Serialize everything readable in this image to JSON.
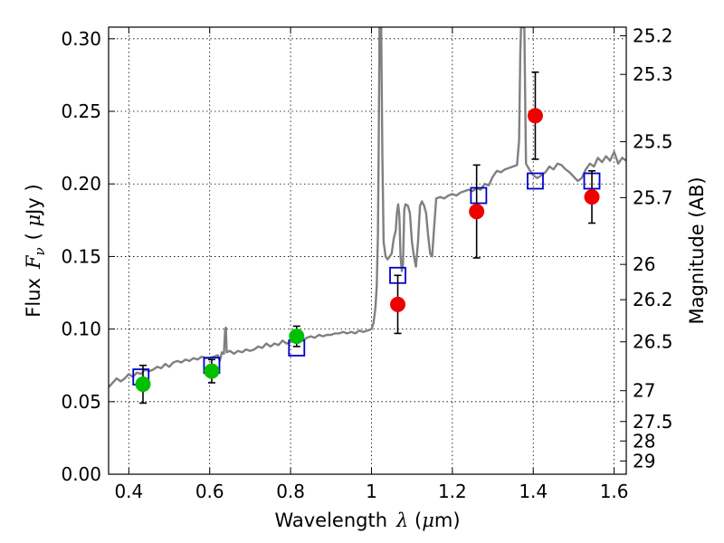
{
  "chart_data": {
    "type": "scatter",
    "xlabel_parts": {
      "prefix": "Wavelength",
      "symbol": "λ",
      "unit_open": " (",
      "unit_mu": "μ",
      "unit_rest": "m)"
    },
    "ylabel_parts": {
      "prefix": "Flux",
      "symbol": "F",
      "sub": "ν",
      "unit_open": "( ",
      "unit_mu": "μ",
      "unit_rest": "Jy )"
    },
    "y2label": "Magnitude (AB)",
    "xlim": [
      0.35,
      1.63
    ],
    "ylim": [
      0.0,
      0.308
    ],
    "grid": true,
    "x_ticks": [
      {
        "value": 0.4,
        "label": "0.4"
      },
      {
        "value": 0.6,
        "label": "0.6"
      },
      {
        "value": 0.8,
        "label": "0.8"
      },
      {
        "value": 1.0,
        "label": "1"
      },
      {
        "value": 1.2,
        "label": "1.2"
      },
      {
        "value": 1.4,
        "label": "1.4"
      },
      {
        "value": 1.6,
        "label": "1.6"
      }
    ],
    "y_ticks": [
      {
        "value": 0.0,
        "label": "0.00"
      },
      {
        "value": 0.05,
        "label": "0.05"
      },
      {
        "value": 0.1,
        "label": "0.10"
      },
      {
        "value": 0.15,
        "label": "0.15"
      },
      {
        "value": 0.2,
        "label": "0.20"
      },
      {
        "value": 0.25,
        "label": "0.25"
      },
      {
        "value": 0.3,
        "label": "0.30"
      }
    ],
    "y2_ticks": [
      {
        "value": 25.2,
        "label": "25.2"
      },
      {
        "value": 25.3,
        "label": "25.3"
      },
      {
        "value": 25.5,
        "label": "25.5"
      },
      {
        "value": 25.7,
        "label": "25.7"
      },
      {
        "value": 26.0,
        "label": "26"
      },
      {
        "value": 26.2,
        "label": "26.2"
      },
      {
        "value": 26.5,
        "label": "26.5"
      },
      {
        "value": 27.0,
        "label": "27"
      },
      {
        "value": 27.5,
        "label": "27.5"
      },
      {
        "value": 28.0,
        "label": "28"
      },
      {
        "value": 29.0,
        "label": "29"
      }
    ],
    "colors": {
      "spectrum": "#808080",
      "green": "#00c000",
      "red": "#ee0000",
      "square": "#0000cc",
      "errorbar": "#000000"
    },
    "spectrum": [
      [
        0.35,
        0.06
      ],
      [
        0.36,
        0.063
      ],
      [
        0.37,
        0.066
      ],
      [
        0.38,
        0.064
      ],
      [
        0.39,
        0.066
      ],
      [
        0.4,
        0.069
      ],
      [
        0.41,
        0.067
      ],
      [
        0.42,
        0.07
      ],
      [
        0.43,
        0.069
      ],
      [
        0.44,
        0.072
      ],
      [
        0.45,
        0.071
      ],
      [
        0.46,
        0.072
      ],
      [
        0.47,
        0.074
      ],
      [
        0.48,
        0.073
      ],
      [
        0.49,
        0.076
      ],
      [
        0.5,
        0.074
      ],
      [
        0.51,
        0.077
      ],
      [
        0.52,
        0.078
      ],
      [
        0.53,
        0.077
      ],
      [
        0.54,
        0.079
      ],
      [
        0.55,
        0.078
      ],
      [
        0.56,
        0.08
      ],
      [
        0.57,
        0.079
      ],
      [
        0.58,
        0.081
      ],
      [
        0.59,
        0.08
      ],
      [
        0.6,
        0.08
      ],
      [
        0.61,
        0.081
      ],
      [
        0.62,
        0.082
      ],
      [
        0.625,
        0.078
      ],
      [
        0.63,
        0.084
      ],
      [
        0.635,
        0.083
      ],
      [
        0.638,
        0.099
      ],
      [
        0.64,
        0.101
      ],
      [
        0.642,
        0.084
      ],
      [
        0.65,
        0.085
      ],
      [
        0.66,
        0.083
      ],
      [
        0.67,
        0.085
      ],
      [
        0.68,
        0.084
      ],
      [
        0.69,
        0.086
      ],
      [
        0.7,
        0.085
      ],
      [
        0.71,
        0.086
      ],
      [
        0.72,
        0.088
      ],
      [
        0.73,
        0.087
      ],
      [
        0.74,
        0.09
      ],
      [
        0.75,
        0.088
      ],
      [
        0.76,
        0.09
      ],
      [
        0.77,
        0.089
      ],
      [
        0.78,
        0.092
      ],
      [
        0.79,
        0.09
      ],
      [
        0.8,
        0.091
      ],
      [
        0.81,
        0.092
      ],
      [
        0.82,
        0.093
      ],
      [
        0.83,
        0.092
      ],
      [
        0.84,
        0.094
      ],
      [
        0.85,
        0.095
      ],
      [
        0.86,
        0.094
      ],
      [
        0.87,
        0.096
      ],
      [
        0.88,
        0.095
      ],
      [
        0.89,
        0.096
      ],
      [
        0.9,
        0.096
      ],
      [
        0.91,
        0.097
      ],
      [
        0.92,
        0.097
      ],
      [
        0.93,
        0.098
      ],
      [
        0.94,
        0.097
      ],
      [
        0.95,
        0.098
      ],
      [
        0.96,
        0.097
      ],
      [
        0.97,
        0.099
      ],
      [
        0.98,
        0.098
      ],
      [
        0.99,
        0.099
      ],
      [
        1.0,
        0.1
      ],
      [
        1.005,
        0.104
      ],
      [
        1.01,
        0.115
      ],
      [
        1.013,
        0.13
      ],
      [
        1.016,
        0.165
      ],
      [
        1.018,
        0.23
      ],
      [
        1.02,
        0.308
      ],
      [
        1.024,
        0.308
      ],
      [
        1.027,
        0.22
      ],
      [
        1.03,
        0.16
      ],
      [
        1.035,
        0.15
      ],
      [
        1.04,
        0.148
      ],
      [
        1.045,
        0.15
      ],
      [
        1.05,
        0.152
      ],
      [
        1.055,
        0.162
      ],
      [
        1.06,
        0.168
      ],
      [
        1.063,
        0.18
      ],
      [
        1.066,
        0.186
      ],
      [
        1.069,
        0.178
      ],
      [
        1.072,
        0.15
      ],
      [
        1.075,
        0.14
      ],
      [
        1.078,
        0.145
      ],
      [
        1.081,
        0.182
      ],
      [
        1.084,
        0.186
      ],
      [
        1.09,
        0.185
      ],
      [
        1.095,
        0.18
      ],
      [
        1.1,
        0.16
      ],
      [
        1.105,
        0.15
      ],
      [
        1.11,
        0.143
      ],
      [
        1.115,
        0.16
      ],
      [
        1.12,
        0.185
      ],
      [
        1.125,
        0.188
      ],
      [
        1.13,
        0.185
      ],
      [
        1.135,
        0.18
      ],
      [
        1.14,
        0.165
      ],
      [
        1.145,
        0.152
      ],
      [
        1.15,
        0.15
      ],
      [
        1.155,
        0.17
      ],
      [
        1.16,
        0.19
      ],
      [
        1.17,
        0.191
      ],
      [
        1.18,
        0.19
      ],
      [
        1.19,
        0.192
      ],
      [
        1.2,
        0.193
      ],
      [
        1.21,
        0.192
      ],
      [
        1.22,
        0.194
      ],
      [
        1.23,
        0.195
      ],
      [
        1.24,
        0.196
      ],
      [
        1.25,
        0.195
      ],
      [
        1.26,
        0.197
      ],
      [
        1.27,
        0.196
      ],
      [
        1.28,
        0.2
      ],
      [
        1.29,
        0.199
      ],
      [
        1.3,
        0.205
      ],
      [
        1.31,
        0.209
      ],
      [
        1.32,
        0.208
      ],
      [
        1.33,
        0.21
      ],
      [
        1.34,
        0.211
      ],
      [
        1.35,
        0.212
      ],
      [
        1.36,
        0.213
      ],
      [
        1.365,
        0.23
      ],
      [
        1.368,
        0.29
      ],
      [
        1.37,
        0.308
      ],
      [
        1.378,
        0.308
      ],
      [
        1.38,
        0.26
      ],
      [
        1.382,
        0.214
      ],
      [
        1.39,
        0.21
      ],
      [
        1.4,
        0.206
      ],
      [
        1.41,
        0.204
      ],
      [
        1.42,
        0.206
      ],
      [
        1.43,
        0.208
      ],
      [
        1.44,
        0.212
      ],
      [
        1.45,
        0.21
      ],
      [
        1.46,
        0.214
      ],
      [
        1.47,
        0.213
      ],
      [
        1.48,
        0.21
      ],
      [
        1.49,
        0.208
      ],
      [
        1.5,
        0.205
      ],
      [
        1.51,
        0.202
      ],
      [
        1.52,
        0.204
      ],
      [
        1.53,
        0.21
      ],
      [
        1.54,
        0.214
      ],
      [
        1.55,
        0.212
      ],
      [
        1.56,
        0.218
      ],
      [
        1.57,
        0.215
      ],
      [
        1.58,
        0.219
      ],
      [
        1.59,
        0.216
      ],
      [
        1.6,
        0.222
      ],
      [
        1.61,
        0.214
      ],
      [
        1.62,
        0.218
      ],
      [
        1.63,
        0.216
      ]
    ],
    "green_points": [
      {
        "x": 0.435,
        "y": 0.062,
        "yerr": 0.013
      },
      {
        "x": 0.605,
        "y": 0.071,
        "yerr": 0.008
      },
      {
        "x": 0.815,
        "y": 0.095,
        "yerr": 0.007
      }
    ],
    "red_points": [
      {
        "x": 1.065,
        "y": 0.117,
        "yerr": 0.02
      },
      {
        "x": 1.26,
        "y": 0.181,
        "yerr": 0.032
      },
      {
        "x": 1.405,
        "y": 0.247,
        "yerr": 0.03
      },
      {
        "x": 1.545,
        "y": 0.191,
        "yerr": 0.018
      }
    ],
    "model_squares": [
      {
        "x": 0.43,
        "y": 0.067
      },
      {
        "x": 0.605,
        "y": 0.075
      },
      {
        "x": 0.815,
        "y": 0.087
      },
      {
        "x": 1.065,
        "y": 0.137
      },
      {
        "x": 1.265,
        "y": 0.192
      },
      {
        "x": 1.405,
        "y": 0.202
      },
      {
        "x": 1.545,
        "y": 0.202
      }
    ]
  }
}
